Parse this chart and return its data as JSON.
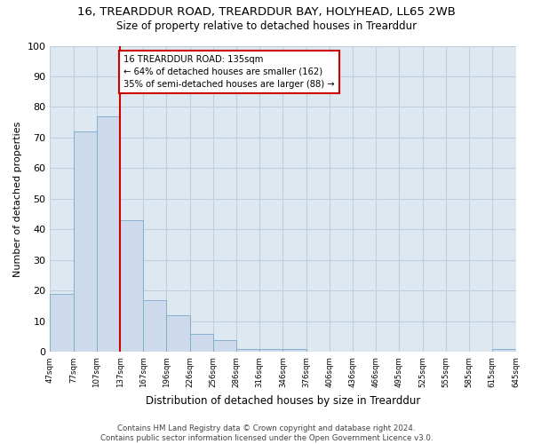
{
  "title": "16, TREARDDUR ROAD, TREARDDUR BAY, HOLYHEAD, LL65 2WB",
  "subtitle": "Size of property relative to detached houses in Trearddur",
  "xlabel": "Distribution of detached houses by size in Trearddur",
  "ylabel": "Number of detached properties",
  "bar_values": [
    19,
    72,
    77,
    43,
    17,
    12,
    6,
    4,
    1,
    1,
    1,
    0,
    0,
    0,
    0,
    0,
    0,
    0,
    0,
    1
  ],
  "bin_labels": [
    "47sqm",
    "77sqm",
    "107sqm",
    "137sqm",
    "167sqm",
    "196sqm",
    "226sqm",
    "256sqm",
    "286sqm",
    "316sqm",
    "346sqm",
    "376sqm",
    "406sqm",
    "436sqm",
    "466sqm",
    "495sqm",
    "525sqm",
    "555sqm",
    "585sqm",
    "615sqm",
    "645sqm"
  ],
  "bar_color": "#ccdaeb",
  "bar_edge_color": "#7aaac8",
  "grid_color": "#bfcfdf",
  "background_color": "#dde8f0",
  "vline_x_index": 3,
  "vline_color": "#cc0000",
  "annotation_text": "16 TREARDDUR ROAD: 135sqm\n← 64% of detached houses are smaller (162)\n35% of semi-detached houses are larger (88) →",
  "annotation_box_color": "#ffffff",
  "annotation_box_edge": "#cc0000",
  "ylim": [
    0,
    100
  ],
  "yticks": [
    0,
    10,
    20,
    30,
    40,
    50,
    60,
    70,
    80,
    90,
    100
  ],
  "footer": "Contains HM Land Registry data © Crown copyright and database right 2024.\nContains public sector information licensed under the Open Government Licence v3.0."
}
